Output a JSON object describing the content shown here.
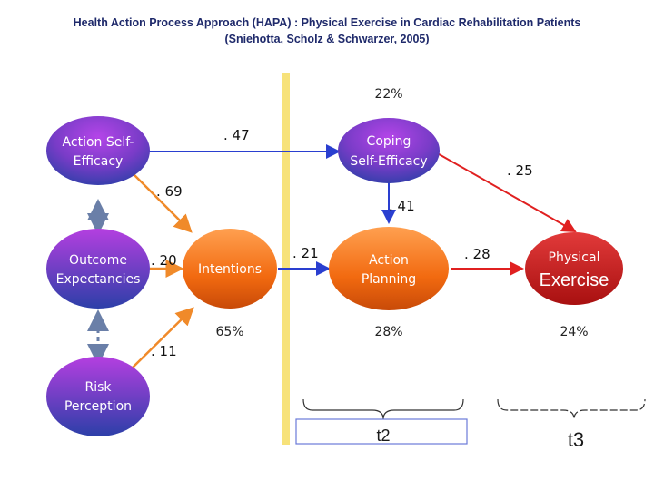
{
  "title_line1": "Health Action Process Approach (HAPA) : Physical Exercise in Cardiac Rehabilitation Patients",
  "title_line2": "(Sniehotta, Scholz & Schwarzer, 2005)",
  "nodes": {
    "action_self_efficacy": [
      "Action Self-",
      "Efficacy"
    ],
    "outcome_expectancies": [
      "Outcome",
      "Expectancies"
    ],
    "risk_perception": [
      "Risk",
      "Perception"
    ],
    "intentions": "Intentions",
    "coping_self_efficacy": [
      "Coping",
      "Self-Efficacy"
    ],
    "action_planning": [
      "Action",
      "Planning"
    ],
    "physical_exercise": [
      "Physical",
      "Exercise"
    ]
  },
  "coefficients": {
    "ase_to_coping": ". 47",
    "ase_to_intentions": ". 69",
    "oe_to_intentions": ". 20",
    "rp_to_intentions": ". 11",
    "intentions_to_planning": ". 21",
    "coping_to_planning": ". 41",
    "coping_to_exercise": ". 25",
    "planning_to_exercise": ". 28"
  },
  "variance": {
    "coping": "22%",
    "intentions": "65%",
    "planning": "28%",
    "exercise": "24%"
  },
  "time_points": {
    "t2": "t2",
    "t3": "t3"
  },
  "colors": {
    "blue_arrow": "#2a3fd0",
    "orange_arrow": "#f08a2a",
    "red_arrow": "#e02020",
    "divider": "#f7e27a",
    "dashed": "#6a7fa8"
  }
}
